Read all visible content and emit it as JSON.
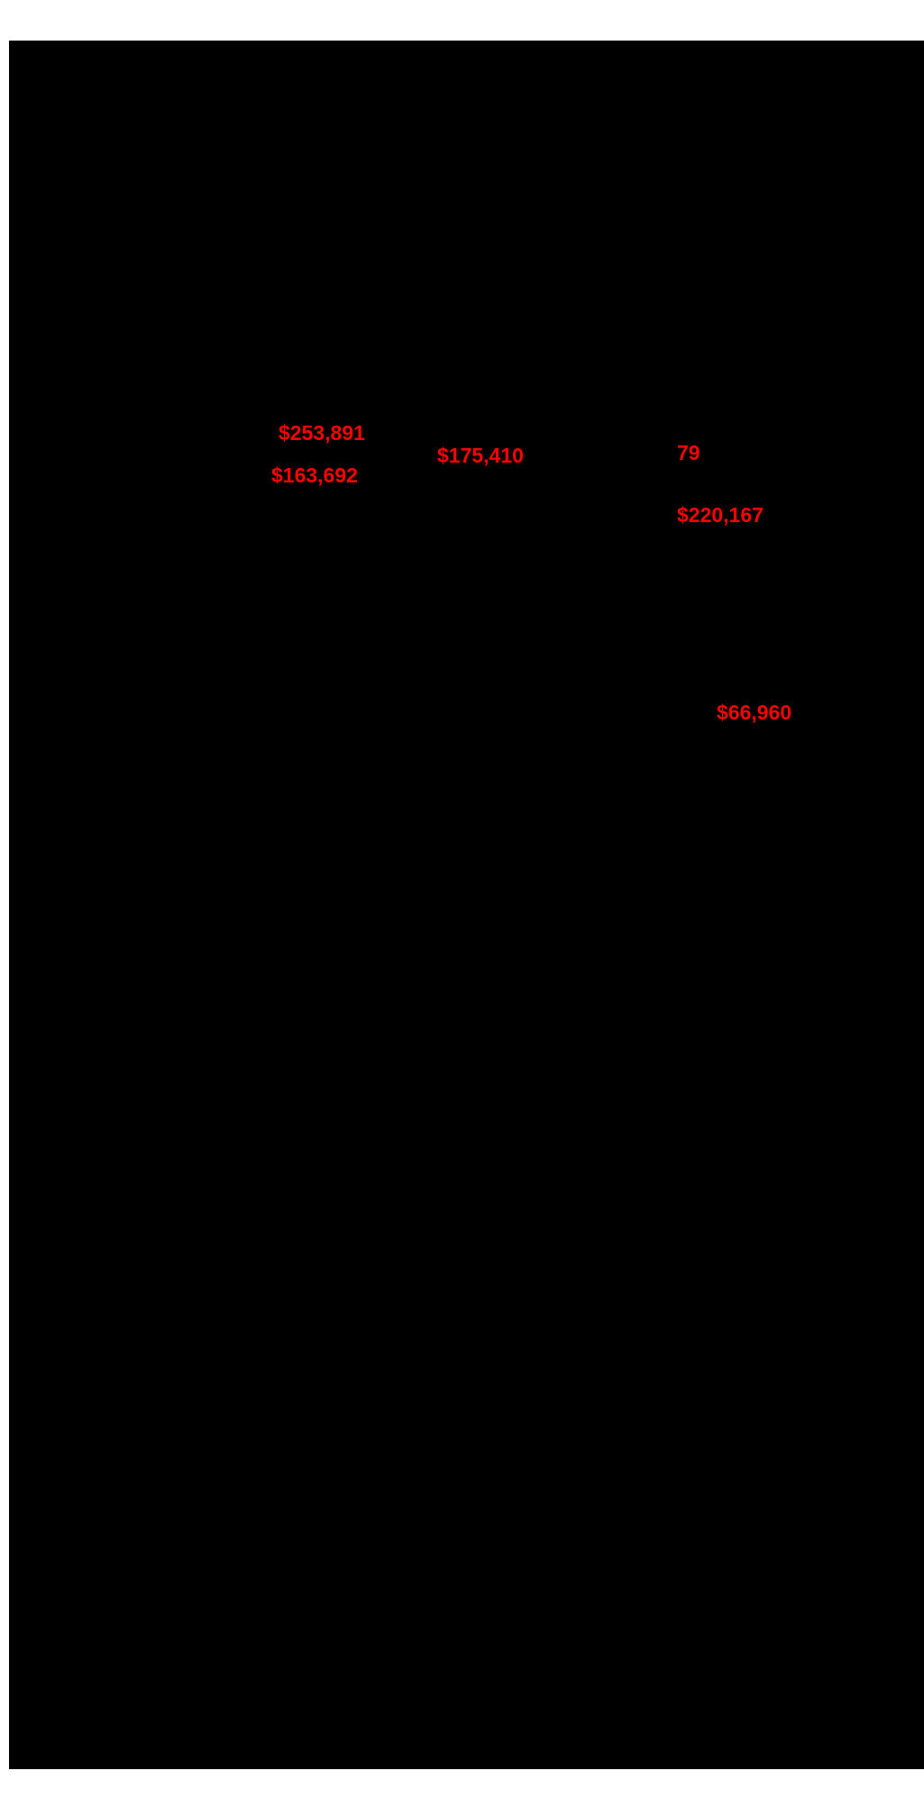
{
  "page": {
    "background_color": "#ffffff",
    "content_background_color": "#000000",
    "label_color": "#ff0000"
  },
  "labels": [
    {
      "text": "$253,891"
    },
    {
      "text": "$163,692"
    },
    {
      "text": "$175,410"
    },
    {
      "text": "79"
    },
    {
      "text": "$220,167"
    },
    {
      "text": "$66,960"
    }
  ]
}
